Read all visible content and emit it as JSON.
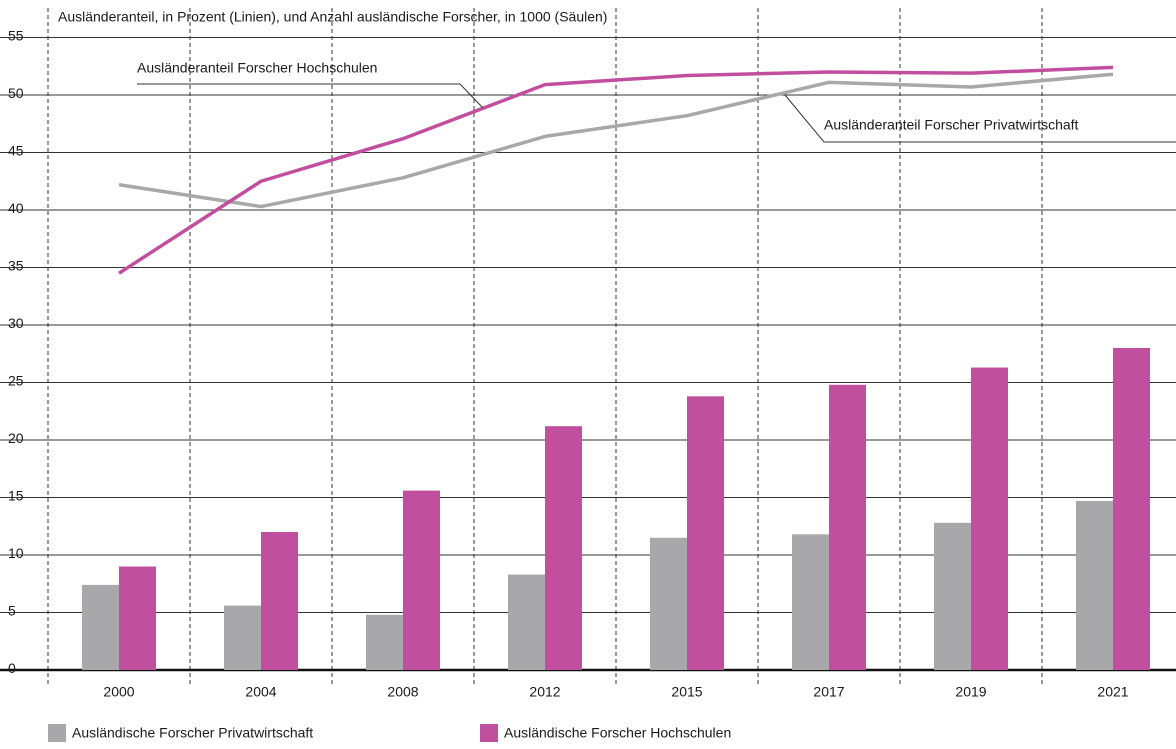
{
  "chart_data": {
    "type": "bar",
    "title": "Ausländeranteil, in Prozent (Linien), und Anzahl ausländische Forscher, in 1000 (Säulen)",
    "categories": [
      "2000",
      "2004",
      "2008",
      "2012",
      "2015",
      "2017",
      "2019",
      "2021"
    ],
    "series": [
      {
        "name": "Ausländische Forscher Privatwirtschaft",
        "type": "bar",
        "color": "#a8a8aa",
        "values": [
          7.4,
          5.6,
          4.8,
          8.3,
          11.5,
          11.8,
          12.8,
          14.7
        ]
      },
      {
        "name": "Ausländische Forscher Hochschulen",
        "type": "bar",
        "color": "#c0509e",
        "values": [
          9.0,
          12.0,
          15.6,
          21.2,
          23.8,
          24.8,
          26.3,
          28.0
        ]
      },
      {
        "name": "Ausländeranteil Forscher Privatwirtschaft",
        "type": "line",
        "color": "#a8a8aa",
        "values": [
          42.2,
          40.3,
          42.8,
          46.4,
          48.2,
          51.1,
          50.7,
          51.8
        ]
      },
      {
        "name": "Ausländeranteil Forscher Hochschulen",
        "type": "line",
        "color": "#c24ea0",
        "values": [
          34.5,
          42.5,
          46.2,
          50.9,
          51.7,
          52.0,
          51.9,
          52.4
        ]
      }
    ],
    "ylim": [
      0,
      55
    ],
    "yticks": [
      0,
      5,
      10,
      15,
      20,
      25,
      30,
      35,
      40,
      45,
      50,
      55
    ],
    "grid": true
  }
}
